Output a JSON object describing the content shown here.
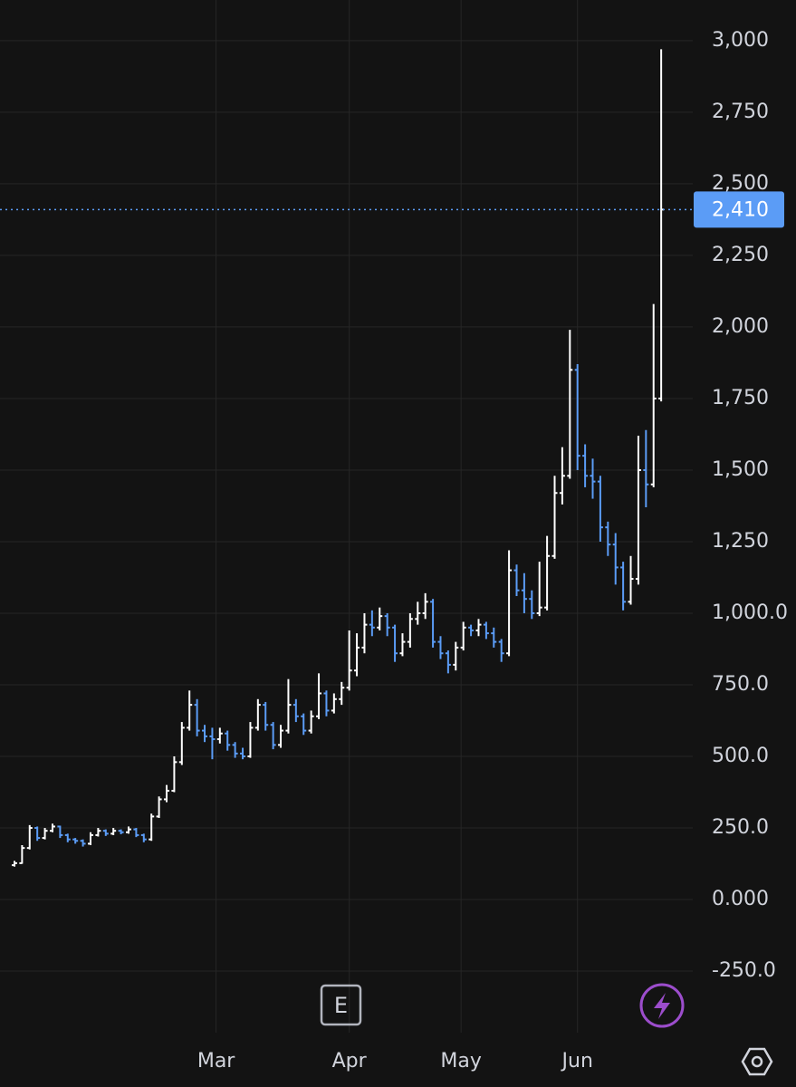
{
  "chart_data": {
    "type": "ohlc",
    "x": [
      0,
      2,
      4,
      6,
      8,
      10,
      12,
      14,
      16,
      18,
      20,
      22,
      24,
      26,
      28,
      30,
      32,
      34,
      36,
      38,
      40,
      42,
      44,
      46,
      48,
      50,
      52,
      54,
      56,
      58,
      60,
      62,
      64,
      66,
      68,
      70,
      72,
      74,
      76,
      78,
      80,
      82,
      84,
      86,
      88,
      90,
      92,
      94,
      96,
      98,
      100,
      102,
      104,
      106,
      108,
      110,
      112,
      114,
      116,
      118,
      120,
      122,
      124,
      126,
      128,
      130,
      132,
      134,
      136,
      138,
      140,
      142,
      144,
      146,
      148,
      150,
      152,
      154,
      156,
      158,
      160,
      162,
      164,
      166,
      168,
      170
    ],
    "open": [
      120,
      127,
      180,
      250,
      215,
      240,
      255,
      225,
      210,
      205,
      195,
      225,
      240,
      230,
      240,
      235,
      245,
      225,
      210,
      290,
      350,
      380,
      480,
      600,
      680,
      590,
      570,
      560,
      580,
      540,
      510,
      500,
      600,
      680,
      610,
      540,
      590,
      680,
      640,
      590,
      640,
      720,
      660,
      700,
      740,
      800,
      880,
      960,
      950,
      990,
      950,
      860,
      900,
      980,
      1000,
      1040,
      900,
      860,
      820,
      880,
      950,
      940,
      960,
      930,
      900,
      860,
      1150,
      1080,
      1050,
      1000,
      1020,
      1200,
      1420,
      1480,
      1850,
      1550,
      1480,
      1460,
      1300,
      1240,
      1160,
      1040,
      1120,
      1500,
      1450,
      1750
    ],
    "high": [
      135,
      190,
      260,
      255,
      250,
      265,
      258,
      230,
      215,
      210,
      235,
      250,
      245,
      250,
      245,
      255,
      250,
      230,
      300,
      360,
      400,
      500,
      620,
      730,
      700,
      610,
      600,
      600,
      590,
      550,
      530,
      620,
      700,
      690,
      620,
      610,
      770,
      700,
      650,
      660,
      790,
      730,
      720,
      760,
      940,
      930,
      1000,
      1010,
      1020,
      1000,
      960,
      930,
      1000,
      1040,
      1070,
      1050,
      920,
      870,
      900,
      970,
      960,
      980,
      970,
      950,
      910,
      1220,
      1170,
      1140,
      1080,
      1180,
      1270,
      1480,
      1580,
      1990,
      1870,
      1590,
      1540,
      1480,
      1320,
      1280,
      1180,
      1200,
      1620,
      1640,
      2080,
      2970
    ],
    "low": [
      115,
      125,
      175,
      205,
      210,
      235,
      215,
      200,
      195,
      185,
      190,
      220,
      222,
      225,
      228,
      230,
      218,
      200,
      205,
      285,
      340,
      375,
      470,
      590,
      570,
      550,
      490,
      545,
      520,
      495,
      490,
      495,
      590,
      590,
      525,
      530,
      580,
      620,
      575,
      580,
      630,
      640,
      650,
      680,
      730,
      780,
      860,
      920,
      940,
      920,
      830,
      850,
      880,
      960,
      980,
      880,
      840,
      790,
      800,
      870,
      920,
      920,
      910,
      880,
      830,
      850,
      1060,
      1000,
      980,
      990,
      1010,
      1190,
      1380,
      1470,
      1500,
      1440,
      1400,
      1250,
      1200,
      1100,
      1010,
      1030,
      1100,
      1370,
      1440,
      1740
    ],
    "close": [
      127,
      180,
      250,
      215,
      240,
      255,
      225,
      210,
      205,
      195,
      225,
      240,
      230,
      240,
      235,
      245,
      225,
      210,
      290,
      350,
      380,
      480,
      600,
      680,
      590,
      570,
      560,
      580,
      540,
      510,
      500,
      600,
      680,
      610,
      540,
      590,
      680,
      640,
      590,
      640,
      720,
      660,
      700,
      740,
      800,
      880,
      960,
      950,
      990,
      950,
      860,
      900,
      980,
      1000,
      1040,
      900,
      860,
      820,
      880,
      950,
      940,
      960,
      930,
      900,
      860,
      1150,
      1080,
      1050,
      1000,
      1020,
      1200,
      1420,
      1480,
      1850,
      1550,
      1480,
      1460,
      1300,
      1240,
      1160,
      1040,
      1120,
      1500,
      1450,
      1750,
      2410
    ],
    "up_color": "#ffffff",
    "down_color": "#5b9cf6",
    "xlim": [
      -3.8,
      178.3
    ],
    "xticks": [
      {
        "value": 53,
        "label": "Mar"
      },
      {
        "value": 88,
        "label": "Apr"
      },
      {
        "value": 117.4,
        "label": "May"
      },
      {
        "value": 148,
        "label": "Jun"
      }
    ],
    "ylim": [
      -465,
      3142
    ],
    "yticks": [
      {
        "value": 3000,
        "label": "3,000"
      },
      {
        "value": 2750,
        "label": "2,750"
      },
      {
        "value": 2500,
        "label": "2,500"
      },
      {
        "value": 2250,
        "label": "2,250"
      },
      {
        "value": 2000,
        "label": "2,000"
      },
      {
        "value": 1750,
        "label": "1,750"
      },
      {
        "value": 1500,
        "label": "1,500"
      },
      {
        "value": 1250,
        "label": "1,250"
      },
      {
        "value": 1000,
        "label": "1,000.0"
      },
      {
        "value": 750,
        "label": "750.0"
      },
      {
        "value": 500,
        "label": "500.0"
      },
      {
        "value": 250,
        "label": "250.0"
      },
      {
        "value": 0,
        "label": "0.000"
      },
      {
        "value": -250,
        "label": "-250.0"
      }
    ],
    "grid": true,
    "last_price": {
      "value": 2410,
      "label": "2,410",
      "color": "#5b9cf6"
    },
    "earnings_marker": "E"
  }
}
